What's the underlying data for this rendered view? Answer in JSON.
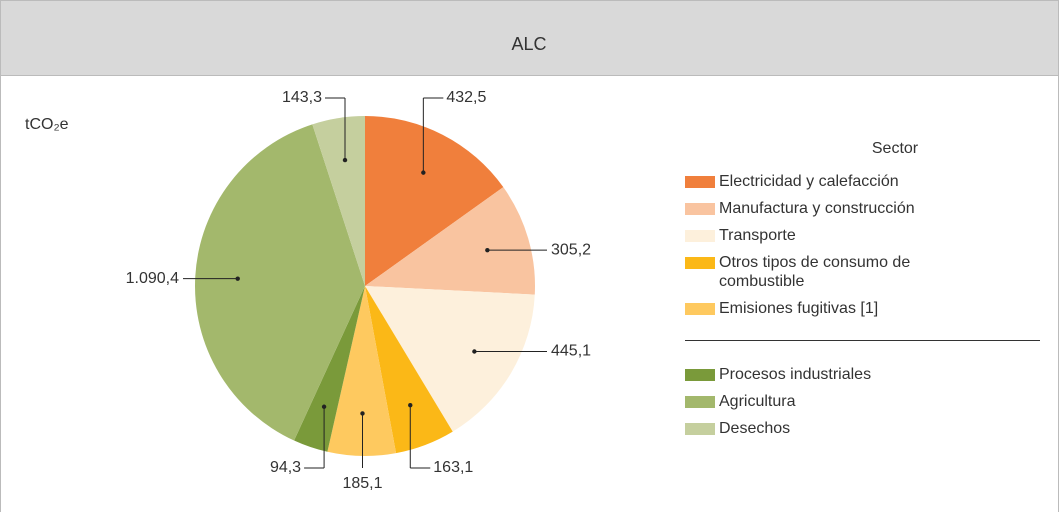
{
  "chart_data": {
    "type": "pie",
    "title": "ALC",
    "unit_label": "tCO₂e",
    "legend_title": "Sector",
    "categories": [
      "Electricidad y calefacción",
      "Manufactura y construcción",
      "Transporte",
      "Otros tipos de consumo de combustible",
      "Emisiones fugitivas [1]",
      "Procesos industriales",
      "Agricultura",
      "Desechos"
    ],
    "values": [
      432.5,
      305.2,
      445.1,
      163.1,
      185.1,
      94.3,
      1090.4,
      143.3
    ],
    "value_labels": [
      "432,5",
      "305,2",
      "445,1",
      "163,1",
      "185,1",
      "94,3",
      "1.090,4",
      "143,3"
    ],
    "colors": [
      "#f07f3c",
      "#f9c4a0",
      "#fdf0dc",
      "#fbb817",
      "#fec95f",
      "#7a9a3a",
      "#a3b86c",
      "#c5cf9e"
    ],
    "legend": "right"
  }
}
